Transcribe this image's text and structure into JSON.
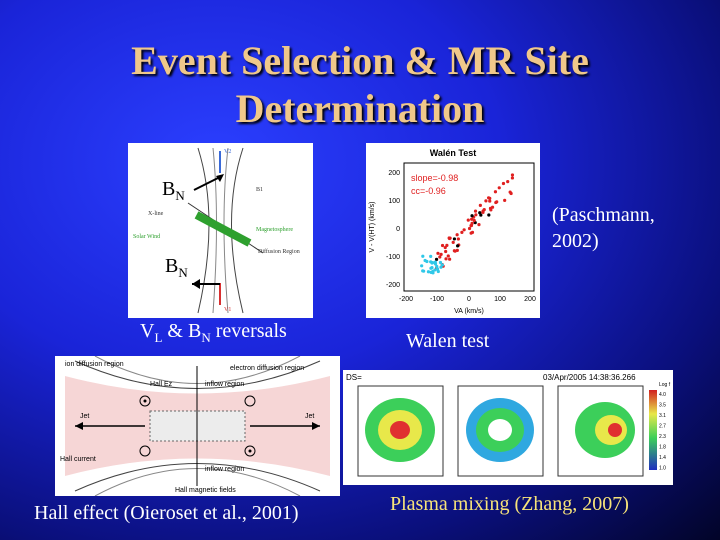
{
  "slide": {
    "title_line1": "Event Selection & MR Site",
    "title_line2": "Determination",
    "bn_label_1": "B",
    "bn_sub_1": "N",
    "bn_label_2": "B",
    "bn_sub_2": "N",
    "paschmann_line1": "(Paschmann,",
    "paschmann_line2": "2002)",
    "caption_vl": "V",
    "caption_vl_sub": "L",
    "caption_amp": " & B",
    "caption_bn_sub": "N",
    "caption_rest": " reversals",
    "caption_walen": "Walen test",
    "caption_hall": "Hall effect (Oieroset et al., 2001)",
    "caption_plasma": "Plasma mixing (Zhang, 2007)"
  },
  "fig_reconnection": {
    "labels": [
      "V2",
      "B1",
      "X-line",
      "Solar Wind",
      "Magnetosphere",
      "Diffusion Region",
      "V1",
      "V2"
    ]
  },
  "fig_walen": {
    "title": "Walén Test",
    "slope": "slope=-0.98",
    "cc": "cc=-0.96",
    "xlabel": "VA (km/s)",
    "ylabel": "V - V(HT) (km/s)",
    "xticks": [
      "-200",
      "-100",
      "0",
      "100",
      "200"
    ],
    "yticks": [
      "200",
      "100",
      "0",
      "-100",
      "-200"
    ]
  },
  "fig_hall": {
    "ion_region": "ion diffusion region",
    "electron_region": "electron diffusion region",
    "hall_ez": "Hall Ez",
    "inflow_top": "inflow region",
    "inflow_bottom": "inflow region",
    "jet_left": "Jet",
    "jet_right": "Jet",
    "hall_current": "Hall current",
    "hall_fields": "Hall magnetic fields"
  },
  "fig_plasma": {
    "header_left": "DS=",
    "header_right": "03/Apr/2005 14:38:36.266",
    "colorbar_label": "Log f",
    "colorbar_ticks": [
      "4.0",
      "3.5",
      "3.1",
      "2.7",
      "2.3",
      "1.8",
      "1.4",
      "1.0"
    ]
  },
  "colors": {
    "title": "#f0c88a",
    "yellow_caption": "#f7e37a",
    "background": "#1a24d8"
  }
}
